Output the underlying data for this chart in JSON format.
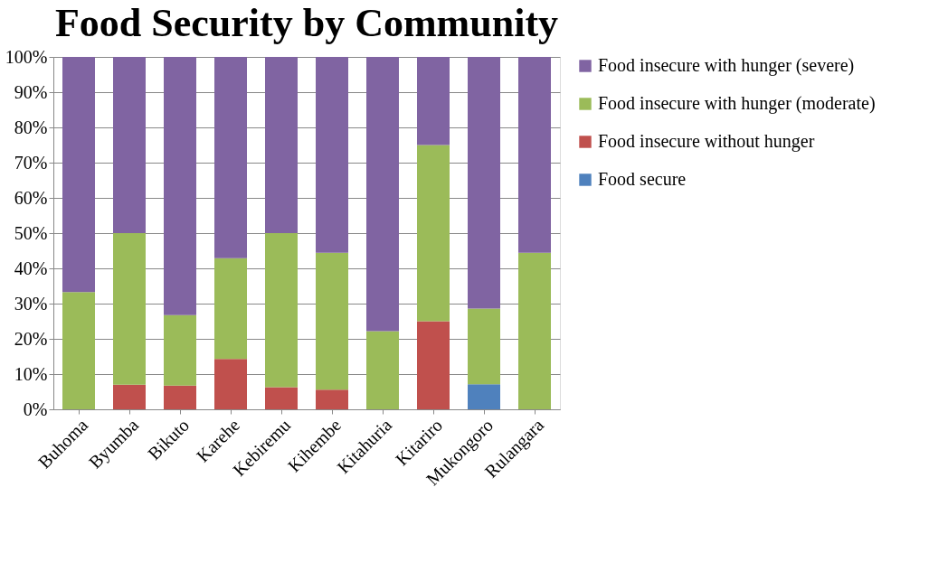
{
  "chart_data": {
    "type": "bar",
    "title": "Food Security by Community",
    "stacked": true,
    "categories": [
      "Buhoma",
      "Byumba",
      "Bikuto",
      "Karehe",
      "Kebiremu",
      "Kihembe",
      "Kitahuria",
      "Kitariro",
      "Mukongoro",
      "Rulangara"
    ],
    "series": [
      {
        "name": "Food secure",
        "color": "#4f81bd",
        "values": [
          0,
          0,
          0,
          0,
          0,
          0,
          0,
          0,
          7.1,
          0
        ]
      },
      {
        "name": "Food insecure without hunger",
        "color": "#c0504d",
        "values": [
          0,
          7,
          6.7,
          14.3,
          6.3,
          5.6,
          0,
          25,
          0,
          0
        ]
      },
      {
        "name": "Food insecure with hunger (moderate)",
        "color": "#9bbb59",
        "values": [
          33.3,
          43,
          20,
          28.6,
          43.7,
          38.8,
          22.2,
          50,
          21.5,
          44.4
        ]
      },
      {
        "name": "Food insecure with hunger (severe)",
        "color": "#8064a2",
        "values": [
          66.7,
          50,
          73.3,
          57.1,
          50,
          55.6,
          77.8,
          25,
          71.4,
          55.6
        ]
      }
    ],
    "ylim": [
      0,
      100
    ],
    "yticks": [
      {
        "value": 0,
        "label": "0%"
      },
      {
        "value": 10,
        "label": "10%"
      },
      {
        "value": 20,
        "label": "20%"
      },
      {
        "value": 30,
        "label": "30%"
      },
      {
        "value": 40,
        "label": "40%"
      },
      {
        "value": 50,
        "label": "50%"
      },
      {
        "value": 60,
        "label": "60%"
      },
      {
        "value": 70,
        "label": "70%"
      },
      {
        "value": 80,
        "label": "80%"
      },
      {
        "value": 90,
        "label": "90%"
      },
      {
        "value": 100,
        "label": "100%"
      }
    ],
    "grid": "y",
    "legend": "right"
  }
}
